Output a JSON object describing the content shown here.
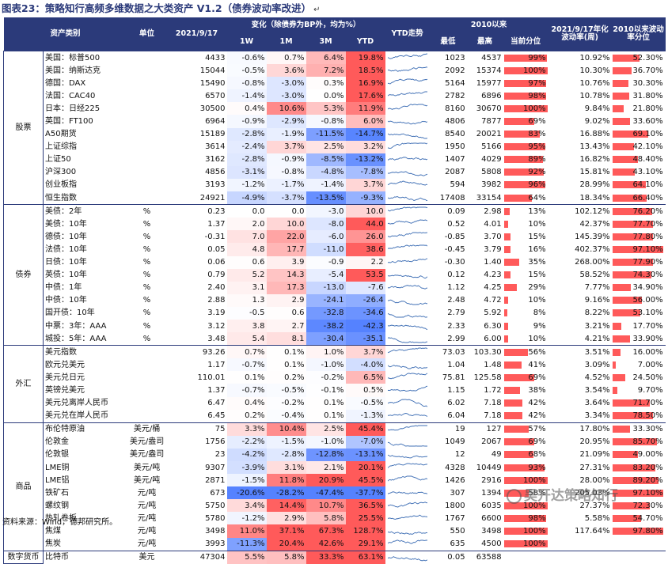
{
  "title": "图表23：策略知行高频多维数据之大类资产 V1.2（债券波动率改进）",
  "title_enter_glyph": "↵",
  "header": {
    "asset": "资产类别",
    "unit": "单位",
    "date": "2021/9/17",
    "change": "变化（除债券为BP外，均为%）",
    "w1": "1W",
    "m1": "1M",
    "m3": "3M",
    "ytd": "YTD",
    "trend": "YTD走势",
    "since2010": "2010以来",
    "min": "最低",
    "max": "最高",
    "pctl": "当前分位",
    "vol": "2021/9/17年化波动率(周)",
    "volpctl": "2010以来波动率分位"
  },
  "colors": {
    "header_bg": "#2b3a7a",
    "red": "#ff5a5a",
    "blue": "#5b82c8"
  },
  "groups": [
    {
      "name": "股票",
      "rows": [
        {
          "name": "美国：标普500",
          "unit": "",
          "value": "4433",
          "w1": "-0.6%",
          "m1": "0.7%",
          "m3": "6.4%",
          "ytd": "19.8%",
          "min": "1023",
          "max": "4537",
          "pctl": 99,
          "pctl_text": "99%",
          "vol": "10.92%",
          "volpctl": 52.3,
          "volpctl_text": "52.30%"
        },
        {
          "name": "美国：纳斯达克",
          "unit": "",
          "value": "15044",
          "w1": "-0.5%",
          "m1": "3.6%",
          "m3": "7.2%",
          "ytd": "18.5%",
          "min": "2092",
          "max": "15374",
          "pctl": 100,
          "pctl_text": "100%",
          "vol": "10.30%",
          "volpctl": 36.7,
          "volpctl_text": "36.70%"
        },
        {
          "name": "德国：DAX",
          "unit": "",
          "value": "15490",
          "w1": "-0.8%",
          "m1": "-3.0%",
          "m3": "0.3%",
          "ytd": "16.9%",
          "min": "5164",
          "max": "15977",
          "pctl": 97,
          "pctl_text": "97%",
          "vol": "10.76%",
          "volpctl": 30.3,
          "volpctl_text": "30.30%"
        },
        {
          "name": "法国：CAC40",
          "unit": "",
          "value": "6570",
          "w1": "-1.4%",
          "m1": "-3.0%",
          "m3": "0.0%",
          "ytd": "17.6%",
          "min": "2782",
          "max": "6896",
          "pctl": 98,
          "pctl_text": "98%",
          "vol": "10.78%",
          "volpctl": 31.8,
          "volpctl_text": "31.80%"
        },
        {
          "name": "日本：日经225",
          "unit": "",
          "value": "30500",
          "w1": "0.4%",
          "m1": "10.6%",
          "m3": "5.3%",
          "ytd": "11.9%",
          "min": "8160",
          "max": "30670",
          "pctl": 100,
          "pctl_text": "100%",
          "vol": "9.84%",
          "volpctl": 21.8,
          "volpctl_text": "21.80%"
        },
        {
          "name": "英国：FT100",
          "unit": "",
          "value": "6964",
          "w1": "-0.9%",
          "m1": "-2.9%",
          "m3": "-0.8%",
          "ytd": "6.0%",
          "min": "4806",
          "max": "7877",
          "pctl": 69,
          "pctl_text": "69%",
          "vol": "9.02%",
          "volpctl": 33.6,
          "volpctl_text": "33.60%"
        },
        {
          "name": "A50期货",
          "unit": "",
          "value": "15189",
          "w1": "-2.8%",
          "m1": "-1.9%",
          "m3": "-11.5%",
          "ytd": "-14.7%",
          "min": "8540",
          "max": "20021",
          "pctl": 83,
          "pctl_text": "83%",
          "vol": "16.88%",
          "volpctl": 69.1,
          "volpctl_text": "69.10%"
        },
        {
          "name": "上证综指",
          "unit": "",
          "value": "3614",
          "w1": "-2.4%",
          "m1": "3.7%",
          "m3": "2.5%",
          "ytd": "3.2%",
          "min": "1950",
          "max": "5166",
          "pctl": 95,
          "pctl_text": "95%",
          "vol": "13.43%",
          "volpctl": 42.1,
          "volpctl_text": "42.10%"
        },
        {
          "name": "上证50",
          "unit": "",
          "value": "3162",
          "w1": "-2.8%",
          "m1": "-0.9%",
          "m3": "-8.5%",
          "ytd": "-13.2%",
          "min": "1407",
          "max": "4029",
          "pctl": 89,
          "pctl_text": "89%",
          "vol": "16.82%",
          "volpctl": 48.4,
          "volpctl_text": "48.40%"
        },
        {
          "name": "沪深300",
          "unit": "",
          "value": "4856",
          "w1": "-3.1%",
          "m1": "-0.8%",
          "m3": "-4.8%",
          "ytd": "-7.8%",
          "min": "2087",
          "max": "5808",
          "pctl": 92,
          "pctl_text": "92%",
          "vol": "15.81%",
          "volpctl": 43.1,
          "volpctl_text": "43.10%"
        },
        {
          "name": "创业板指",
          "unit": "",
          "value": "3193",
          "w1": "-1.2%",
          "m1": "-1.7%",
          "m3": "-1.4%",
          "ytd": "3.7%",
          "min": "594",
          "max": "3982",
          "pctl": 96,
          "pctl_text": "96%",
          "vol": "28.99%",
          "volpctl": 64.1,
          "volpctl_text": "64.10%"
        },
        {
          "name": "恒生指数",
          "unit": "",
          "value": "24921",
          "w1": "-4.9%",
          "m1": "-3.7%",
          "m3": "-13.5%",
          "ytd": "-9.3%",
          "min": "17408",
          "max": "33154",
          "pctl": 64,
          "pctl_text": "64%",
          "vol": "18.34%",
          "volpctl": 66.4,
          "volpctl_text": "66.40%"
        }
      ]
    },
    {
      "name": "债券",
      "rows": [
        {
          "name": "美债：2年",
          "unit": "%",
          "value": "0.23",
          "w1": "0.0",
          "m1": "0.0",
          "m3": "-3.0",
          "ytd": "10.0",
          "min": "0.09",
          "max": "2.98",
          "pctl": 13,
          "pctl_text": "13%",
          "vol": "102.12%",
          "volpctl": 76.2,
          "volpctl_text": "76.20%"
        },
        {
          "name": "美债：10年",
          "unit": "%",
          "value": "1.37",
          "w1": "2.0",
          "m1": "10.0",
          "m3": "-8.0",
          "ytd": "44.0",
          "min": "0.52",
          "max": "4.01",
          "pctl": 10,
          "pctl_text": "10%",
          "vol": "42.37%",
          "volpctl": 77.7,
          "volpctl_text": "77.70%"
        },
        {
          "name": "德债：10年",
          "unit": "%",
          "value": "-0.31",
          "w1": "7.0",
          "m1": "22.0",
          "m3": "-6.0",
          "ytd": "26.0",
          "min": "-0.85",
          "max": "3.70",
          "pctl": 15,
          "pctl_text": "15%",
          "vol": "145.39%",
          "volpctl": 77.8,
          "volpctl_text": "77.80%"
        },
        {
          "name": "法债：10年",
          "unit": "%",
          "value": "0.05",
          "w1": "4.8",
          "m1": "17.7",
          "m3": "-11.0",
          "ytd": "38.6",
          "min": "-0.45",
          "max": "3.79",
          "pctl": 16,
          "pctl_text": "16%",
          "vol": "402.37%",
          "volpctl": 97.1,
          "volpctl_text": "97.10%"
        },
        {
          "name": "日债：10年",
          "unit": "%",
          "value": "0.06",
          "w1": "0.6",
          "m1": "3.9",
          "m3": "-0.9",
          "ytd": "2.2",
          "min": "-0.30",
          "max": "1.40",
          "pctl": 35,
          "pctl_text": "35%",
          "vol": "268.00%",
          "volpctl": 77.9,
          "volpctl_text": "77.90%"
        },
        {
          "name": "英债：10年",
          "unit": "%",
          "value": "0.79",
          "w1": "5.2",
          "m1": "14.3",
          "m3": "-5.4",
          "ytd": "53.5",
          "min": "0.12",
          "max": "4.23",
          "pctl": 15,
          "pctl_text": "15%",
          "vol": "58.52%",
          "volpctl": 74.3,
          "volpctl_text": "74.30%"
        },
        {
          "name": "中债：1年",
          "unit": "%",
          "value": "2.40",
          "w1": "3.1",
          "m1": "17.3",
          "m3": "-13.0",
          "ytd": "-7.6",
          "min": "1.12",
          "max": "4.25",
          "pctl": 29,
          "pctl_text": "29%",
          "vol": "7.77%",
          "volpctl": 34.9,
          "volpctl_text": "34.90%"
        },
        {
          "name": "中债：10年",
          "unit": "%",
          "value": "2.88",
          "w1": "1.3",
          "m1": "2.9",
          "m3": "-24.1",
          "ytd": "-26.4",
          "min": "2.48",
          "max": "4.72",
          "pctl": 10,
          "pctl_text": "10%",
          "vol": "9.16%",
          "volpctl": 56.0,
          "volpctl_text": "56.00%"
        },
        {
          "name": "国开债：10年",
          "unit": "%",
          "value": "3.19",
          "w1": "-0.5",
          "m1": "0.6",
          "m3": "-32.8",
          "ytd": "-34.6",
          "min": "2.79",
          "max": "5.92",
          "pctl": 8,
          "pctl_text": "8%",
          "vol": "8.22%",
          "volpctl": 53.1,
          "volpctl_text": "53.10%"
        },
        {
          "name": "中票：3年：AAA",
          "unit": "%",
          "value": "3.12",
          "w1": "3.8",
          "m1": "2.7",
          "m3": "-38.2",
          "ytd": "-42.3",
          "min": "2.33",
          "max": "6.30",
          "pctl": 9,
          "pctl_text": "9%",
          "vol": "3.21%",
          "volpctl": 17.7,
          "volpctl_text": "17.70%"
        },
        {
          "name": "城投：5年：AAA",
          "unit": "%",
          "value": "3.48",
          "w1": "5.4",
          "m1": "8.1",
          "m3": "-30.4",
          "ytd": "-35.1",
          "min": "2.99",
          "max": "6.00",
          "pctl": 10,
          "pctl_text": "10%",
          "vol": "4.21%",
          "volpctl": 33.9,
          "volpctl_text": "33.90%"
        }
      ]
    },
    {
      "name": "外汇",
      "rows": [
        {
          "name": "美元指数",
          "unit": "",
          "value": "93.26",
          "w1": "0.7%",
          "m1": "0.1%",
          "m3": "1.0%",
          "ytd": "3.7%",
          "min": "73.03",
          "max": "103.30",
          "pctl": 56,
          "pctl_text": "56%",
          "vol": "3.51%",
          "volpctl": 16.0,
          "volpctl_text": "16.00%"
        },
        {
          "name": "欧元兑美元",
          "unit": "",
          "value": "1.17",
          "w1": "-0.7%",
          "m1": "0.1%",
          "m3": "-1.0%",
          "ytd": "-4.0%",
          "min": "1.04",
          "max": "1.48",
          "pctl": 41,
          "pctl_text": "41%",
          "vol": "3.09%",
          "volpctl": 7.0,
          "volpctl_text": "7.00%"
        },
        {
          "name": "美元兑日元",
          "unit": "",
          "value": "110.01",
          "w1": "0.1%",
          "m1": "0.2%",
          "m3": "-0.2%",
          "ytd": "6.5%",
          "min": "75.81",
          "max": "125.58",
          "pctl": 69,
          "pctl_text": "69%",
          "vol": "4.52%",
          "volpctl": 24.5,
          "volpctl_text": "24.50%"
        },
        {
          "name": "英镑兑美元",
          "unit": "",
          "value": "1.37",
          "w1": "-0.7%",
          "m1": "-0.5%",
          "m3": "-0.1%",
          "ytd": "0.5%",
          "min": "1.15",
          "max": "1.72",
          "pctl": 38,
          "pctl_text": "38%",
          "vol": "3.54%",
          "volpctl": 9.7,
          "volpctl_text": "9.70%"
        },
        {
          "name": "美元兑离岸人民币",
          "unit": "",
          "value": "6.47",
          "w1": "0.4%",
          "m1": "-0.2%",
          "m3": "0.1%",
          "ytd": "-0.5%",
          "min": "6.02",
          "max": "7.18",
          "pctl": 42,
          "pctl_text": "42%",
          "vol": "3.64%",
          "volpctl": 71.7,
          "volpctl_text": "71.70%"
        },
        {
          "name": "美元兑在岸人民币",
          "unit": "",
          "value": "6.45",
          "w1": "0.2%",
          "m1": "-0.4%",
          "m3": "0.1%",
          "ytd": "-1.3%",
          "min": "6.04",
          "max": "7.18",
          "pctl": 42,
          "pctl_text": "42%",
          "vol": "3.34%",
          "volpctl": 78.5,
          "volpctl_text": "78.50%"
        }
      ]
    },
    {
      "name": "商品",
      "rows": [
        {
          "name": "布伦特原油",
          "unit": "美元/桶",
          "value": "75",
          "w1": "3.3%",
          "m1": "10.4%",
          "m3": "2.5%",
          "ytd": "45.4%",
          "min": "19",
          "max": "127",
          "pctl": 57,
          "pctl_text": "57%",
          "vol": "17.80%",
          "volpctl": 33.3,
          "volpctl_text": "33.30%"
        },
        {
          "name": "伦敦金",
          "unit": "美元/盎司",
          "value": "1756",
          "w1": "-2.2%",
          "m1": "-1.5%",
          "m3": "-1.0%",
          "ytd": "-7.0%",
          "min": "1049",
          "max": "2067",
          "pctl": 69,
          "pctl_text": "69%",
          "vol": "20.95%",
          "volpctl": 85.7,
          "volpctl_text": "85.70%"
        },
        {
          "name": "伦敦银",
          "unit": "美元/盎司",
          "value": "23",
          "w1": "-4.2%",
          "m1": "-2.8%",
          "m3": "-12.8%",
          "ytd": "-13.1%",
          "min": "12",
          "max": "49",
          "pctl": 68,
          "pctl_text": "68%",
          "vol": "21.09%",
          "volpctl": 49.0,
          "volpctl_text": "49.00%"
        },
        {
          "name": "LME铜",
          "unit": "美元/吨",
          "value": "9307",
          "w1": "-3.9%",
          "m1": "3.1%",
          "m3": "2.1%",
          "ytd": "20.1%",
          "min": "4328",
          "max": "10449",
          "pctl": 93,
          "pctl_text": "93%",
          "vol": "27.31%",
          "volpctl": 83.2,
          "volpctl_text": "83.20%"
        },
        {
          "name": "LME铝",
          "unit": "美元/吨",
          "value": "2871",
          "w1": "-1.5%",
          "m1": "11.8%",
          "m3": "20.9%",
          "ytd": "45.5%",
          "min": "1426",
          "max": "2916",
          "pctl": 100,
          "pctl_text": "100%",
          "vol": "28.00%",
          "volpctl": 89.2,
          "volpctl_text": "89.20%"
        },
        {
          "name": "铁矿石",
          "unit": "元/吨",
          "value": "673",
          "w1": "-20.6%",
          "m1": "-28.2%",
          "m3": "-47.4%",
          "ytd": "-37.7%",
          "min": "307",
          "max": "1394",
          "pctl": 58,
          "pctl_text": "58%",
          "vol": "205.03%",
          "volpctl": 97.1,
          "volpctl_text": "97.10%"
        },
        {
          "name": "螺纹钢",
          "unit": "元/吨",
          "value": "5750",
          "w1": "3.4%",
          "m1": "14.4%",
          "m3": "10.7%",
          "ytd": "36.5%",
          "min": "1800",
          "max": "6035",
          "pctl": 100,
          "pctl_text": "100%",
          "vol": "27.37%",
          "volpctl": 72.3,
          "volpctl_text": "72.30%"
        },
        {
          "name": "热轧卷板",
          "unit": "元/吨",
          "value": "5780",
          "w1": "-1.2%",
          "m1": "2.9%",
          "m3": "5.8%",
          "ytd": "25.5%",
          "min": "1767",
          "max": "6600",
          "pctl": 98,
          "pctl_text": "98%",
          "vol": "5.58%",
          "volpctl": 54.7,
          "volpctl_text": "54.70%"
        },
        {
          "name": "焦煤",
          "unit": "元/吨",
          "value": "3498",
          "w1": "11.0%",
          "m1": "37.1%",
          "m3": "67.3%",
          "ytd": "128.7%",
          "min": "550",
          "max": "3498",
          "pctl": 100,
          "pctl_text": "100%",
          "vol": "117.64%",
          "volpctl": 97.8,
          "volpctl_text": "97.80%"
        },
        {
          "name": "焦炭",
          "unit": "元/吨",
          "value": "3993",
          "w1": "-11.3%",
          "m1": "20.4%",
          "m3": "42.6%",
          "ytd": "29.1%",
          "min": "635",
          "max": "4500",
          "pctl": 100,
          "pctl_text": "100%",
          "vol": "",
          "volpctl": 0,
          "volpctl_text": ""
        }
      ]
    },
    {
      "name": "数字货币",
      "rows": [
        {
          "name": "比特币",
          "unit": "美元",
          "value": "47304",
          "w1": "5.5%",
          "m1": "5.8%",
          "m3": "33.3%",
          "ytd": "63.1%",
          "min": "0.05",
          "max": "63588",
          "pctl": 0,
          "pctl_text": "",
          "vol": "",
          "volpctl": 0,
          "volpctl_text": ""
        }
      ]
    }
  ],
  "sparkline_icon": "trend-sparkline",
  "source": "资料来源：Wind，德邦研究所。",
  "watermark": "吴开达策略知行"
}
